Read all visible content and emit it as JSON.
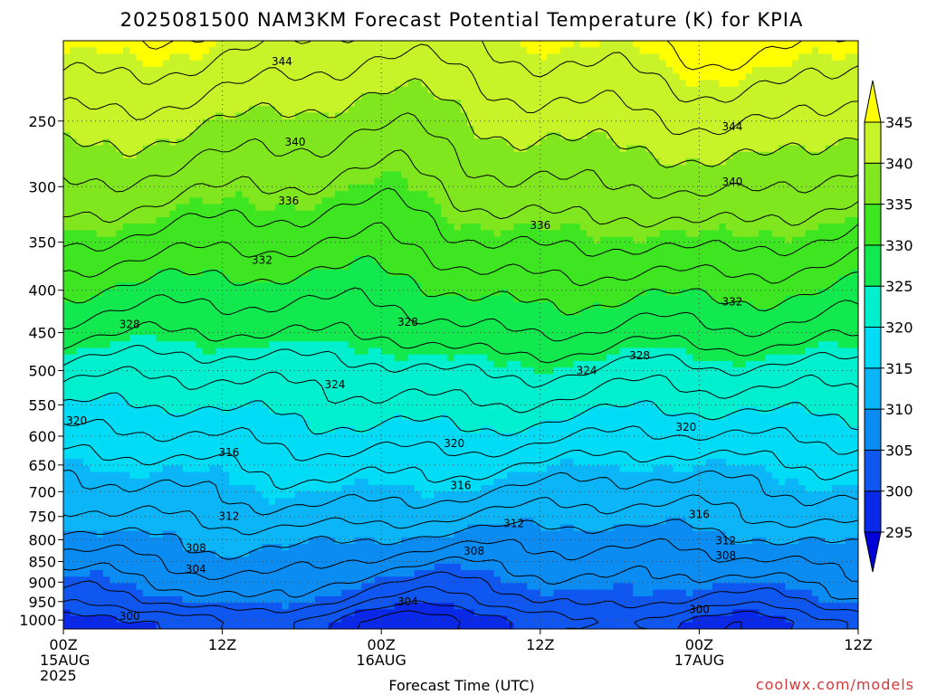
{
  "title": "2025081500 NAM3KM Forecast Potential Temperature (K) for KPIA",
  "credit": "coolwx.com/models",
  "chart_data": {
    "type": "heatmap",
    "title": "2025081500 NAM3KM Forecast Potential Temperature (K) for KPIA",
    "xlabel": "Forecast Time (UTC)",
    "x_range_hours": [
      0,
      60
    ],
    "x_ticks": [
      {
        "hour": 0,
        "lines": [
          "00Z",
          "15AUG",
          "2025"
        ]
      },
      {
        "hour": 12,
        "lines": [
          "12Z"
        ]
      },
      {
        "hour": 24,
        "lines": [
          "00Z",
          "16AUG"
        ]
      },
      {
        "hour": 36,
        "lines": [
          "12Z"
        ]
      },
      {
        "hour": 48,
        "lines": [
          "00Z",
          "17AUG"
        ]
      },
      {
        "hour": 60,
        "lines": [
          "12Z"
        ]
      }
    ],
    "y_axis": {
      "scale": "log",
      "reversed": true,
      "range_hpa": [
        200,
        1025
      ],
      "ticks": [
        250,
        300,
        350,
        400,
        450,
        500,
        550,
        600,
        650,
        700,
        750,
        800,
        850,
        900,
        950,
        1000
      ]
    },
    "colorbar": {
      "levels": [
        295,
        300,
        305,
        310,
        315,
        320,
        325,
        330,
        335,
        340,
        345
      ],
      "labels": [
        "295",
        "300",
        "305",
        "310",
        "315",
        "320",
        "325",
        "330",
        "335",
        "340",
        "345"
      ],
      "colors": [
        "#0000d8",
        "#0a28e8",
        "#0f57f0",
        "#0a8cf2",
        "#0bb5f7",
        "#00dcf5",
        "#00f0cf",
        "#12e94f",
        "#3ee622",
        "#80e71f",
        "#c8f328",
        "#ffff00"
      ],
      "extend": "both"
    },
    "surface_color": "#a0522d",
    "grid": true,
    "profile": [
      {
        "p": 1000,
        "theta": 300
      },
      {
        "p": 950,
        "theta": 303.5
      },
      {
        "p": 900,
        "theta": 305.5
      },
      {
        "p": 850,
        "theta": 307.5
      },
      {
        "p": 800,
        "theta": 309.5
      },
      {
        "p": 750,
        "theta": 312
      },
      {
        "p": 700,
        "theta": 314
      },
      {
        "p": 650,
        "theta": 316
      },
      {
        "p": 600,
        "theta": 318.5
      },
      {
        "p": 550,
        "theta": 321
      },
      {
        "p": 500,
        "theta": 323.5
      },
      {
        "p": 450,
        "theta": 327
      },
      {
        "p": 400,
        "theta": 330
      },
      {
        "p": 350,
        "theta": 333.5
      },
      {
        "p": 300,
        "theta": 337
      },
      {
        "p": 250,
        "theta": 340.5
      },
      {
        "p": 200,
        "theta": 345
      }
    ],
    "contour_interval": 2,
    "contour_labels": [
      {
        "hour": 16.5,
        "p": 212,
        "text": "344"
      },
      {
        "hour": 17.5,
        "p": 265,
        "text": "340"
      },
      {
        "hour": 50.5,
        "p": 254,
        "text": "344"
      },
      {
        "hour": 50.5,
        "p": 296,
        "text": "340"
      },
      {
        "hour": 17.0,
        "p": 312,
        "text": "336"
      },
      {
        "hour": 36.0,
        "p": 334,
        "text": "336"
      },
      {
        "hour": 15.0,
        "p": 368,
        "text": "332"
      },
      {
        "hour": 50.5,
        "p": 413,
        "text": "332"
      },
      {
        "hour": 5.0,
        "p": 440,
        "text": "328"
      },
      {
        "hour": 26.0,
        "p": 437,
        "text": "328"
      },
      {
        "hour": 43.5,
        "p": 480,
        "text": "328"
      },
      {
        "hour": 20.5,
        "p": 520,
        "text": "324"
      },
      {
        "hour": 39.5,
        "p": 500,
        "text": "324"
      },
      {
        "hour": 1.0,
        "p": 575,
        "text": "320"
      },
      {
        "hour": 29.5,
        "p": 612,
        "text": "320"
      },
      {
        "hour": 47.0,
        "p": 585,
        "text": "320"
      },
      {
        "hour": 12.5,
        "p": 628,
        "text": "316"
      },
      {
        "hour": 30.0,
        "p": 688,
        "text": "316"
      },
      {
        "hour": 48.0,
        "p": 746,
        "text": "316"
      },
      {
        "hour": 12.5,
        "p": 750,
        "text": "312"
      },
      {
        "hour": 34.0,
        "p": 765,
        "text": "312"
      },
      {
        "hour": 50.0,
        "p": 802,
        "text": "312"
      },
      {
        "hour": 10.0,
        "p": 818,
        "text": "308"
      },
      {
        "hour": 31.0,
        "p": 826,
        "text": "308"
      },
      {
        "hour": 50.0,
        "p": 836,
        "text": "308"
      },
      {
        "hour": 10.0,
        "p": 868,
        "text": "304"
      },
      {
        "hour": 26.0,
        "p": 950,
        "text": "304"
      },
      {
        "hour": 5.0,
        "p": 990,
        "text": "300"
      },
      {
        "hour": 48.0,
        "p": 971,
        "text": "300"
      }
    ]
  }
}
